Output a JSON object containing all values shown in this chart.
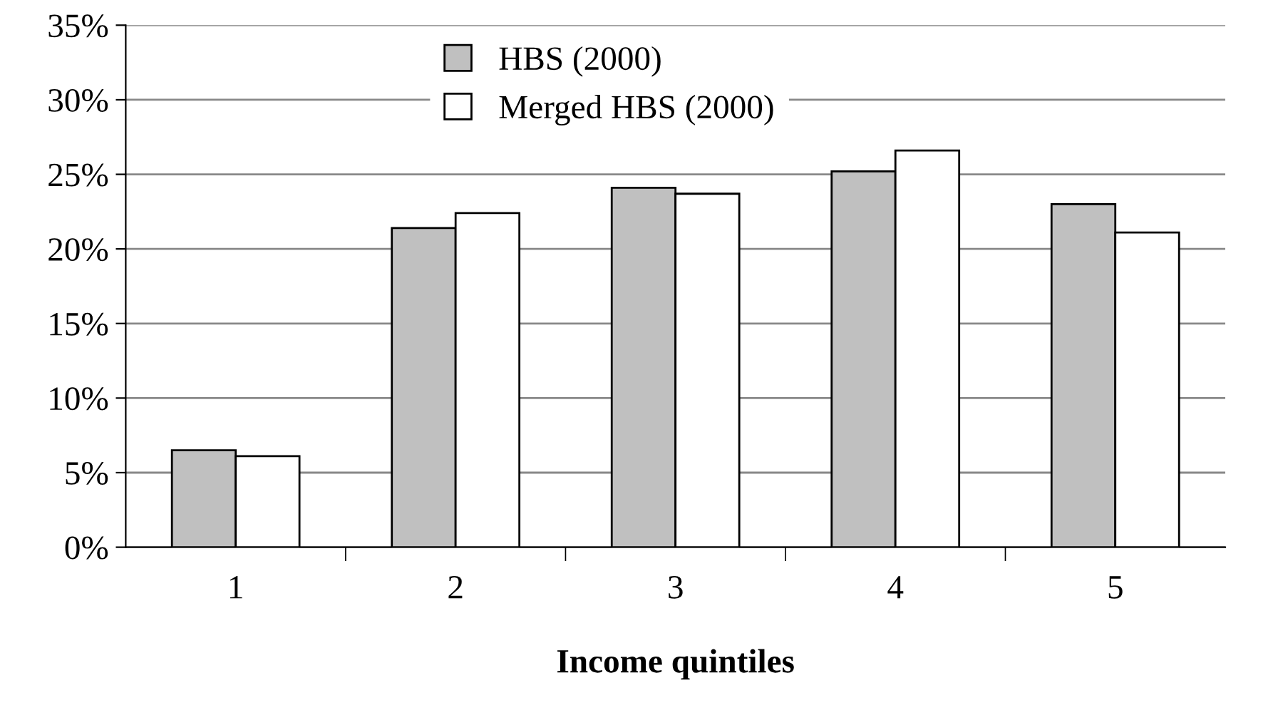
{
  "chart_data": {
    "type": "bar",
    "xlabel": "Income quintiles",
    "categories": [
      "1",
      "2",
      "3",
      "4",
      "5"
    ],
    "series": [
      {
        "name": "HBS (2000)",
        "color": "#c0c0c0",
        "values": [
          6.5,
          21.4,
          24.1,
          25.2,
          23.0
        ]
      },
      {
        "name": "Merged HBS (2000)",
        "color": "#ffffff",
        "values": [
          6.1,
          22.4,
          23.7,
          26.6,
          21.1
        ]
      }
    ],
    "ylim": [
      0,
      35
    ],
    "yticks": [
      {
        "value": 0,
        "label": "0%"
      },
      {
        "value": 5,
        "label": "5%"
      },
      {
        "value": 10,
        "label": "10%"
      },
      {
        "value": 15,
        "label": "15%"
      },
      {
        "value": 20,
        "label": "20%"
      },
      {
        "value": 25,
        "label": "25%"
      },
      {
        "value": 30,
        "label": "30%"
      },
      {
        "value": 35,
        "label": "35%"
      }
    ],
    "grid": "y",
    "legend": "top"
  }
}
